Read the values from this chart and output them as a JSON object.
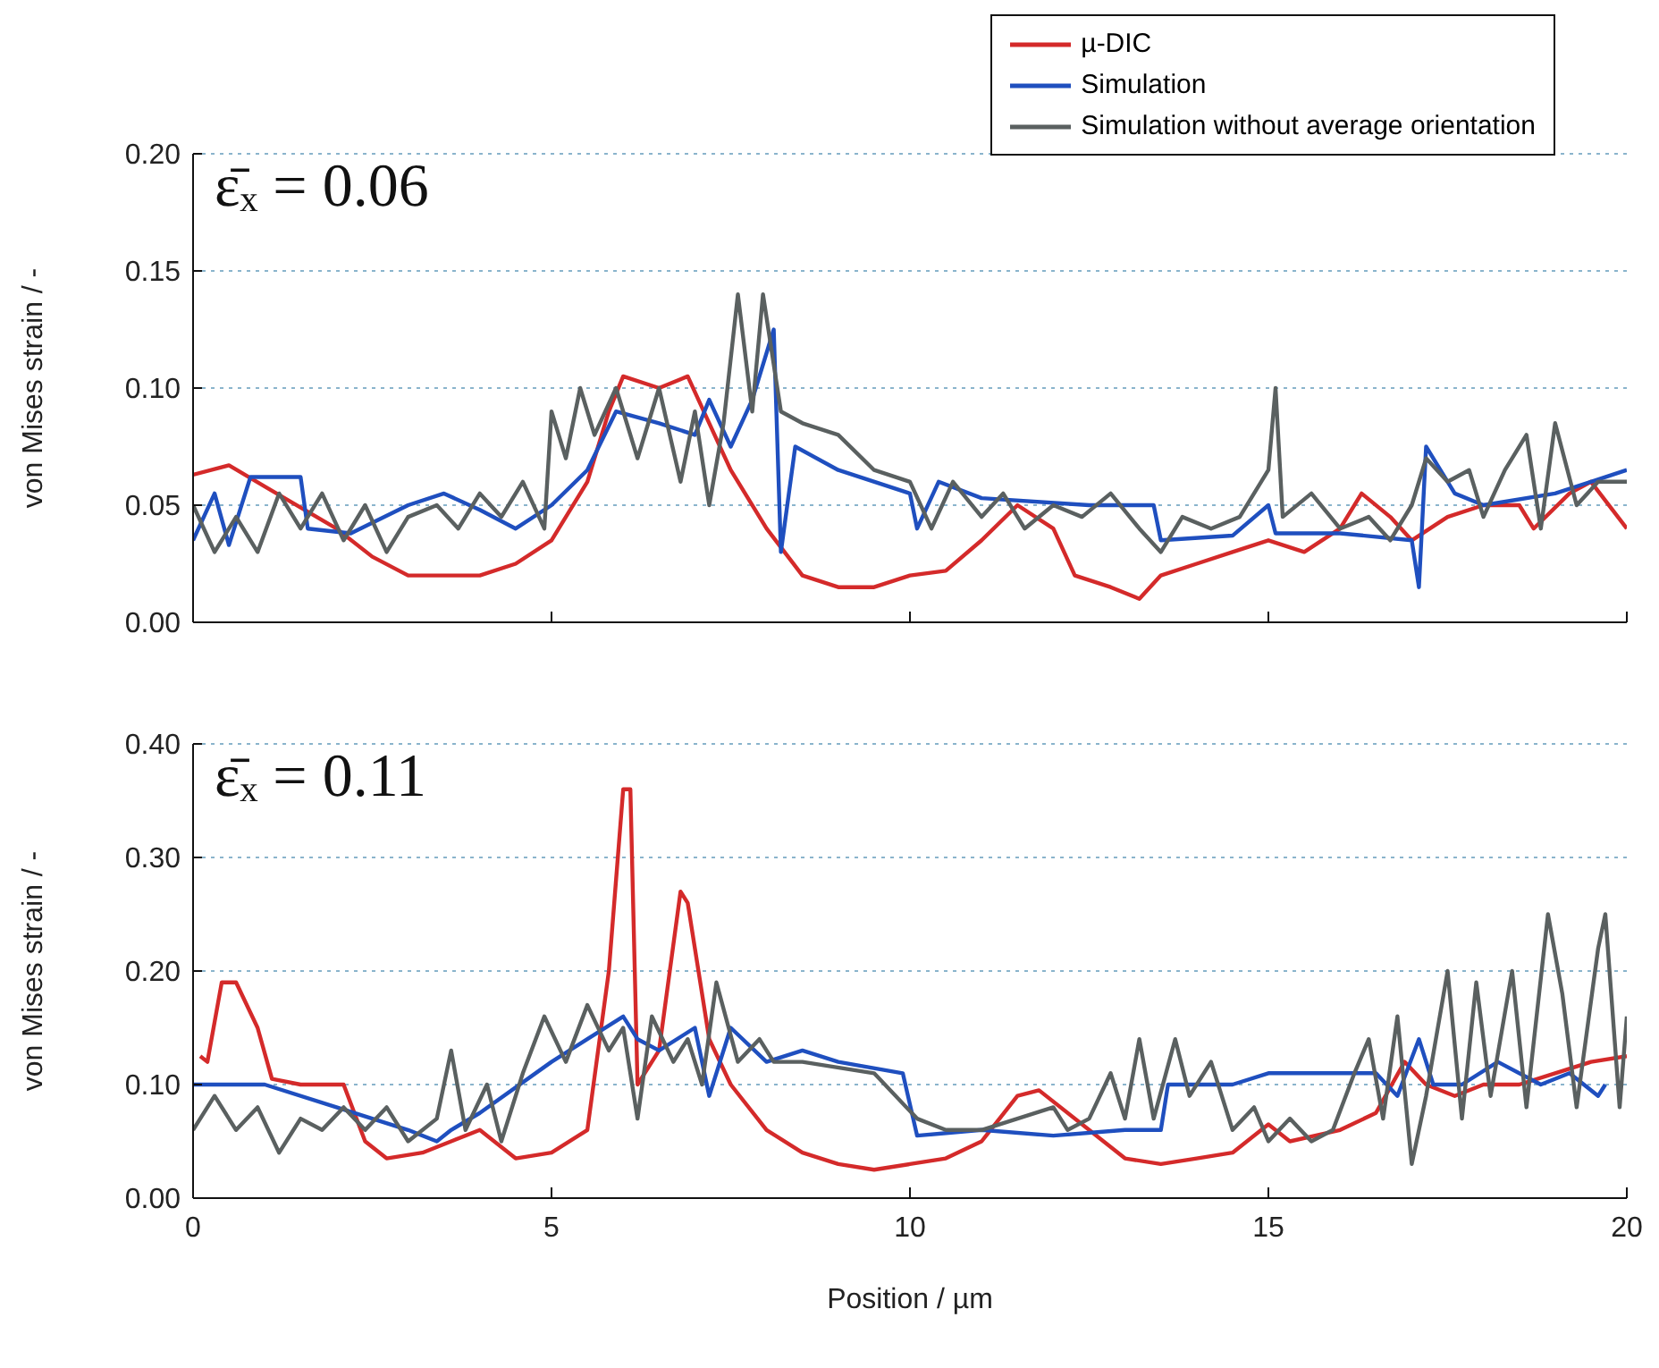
{
  "chart_data": [
    {
      "type": "line",
      "ylabel": "von Mises strain / -",
      "annotations": [
        "ε̄ₓ = 0.06"
      ],
      "legend": "top right",
      "grid": "y",
      "tick_labels": "y",
      "line_style": "solid",
      "marker": "none",
      "xlim": [
        0,
        20
      ],
      "xticks": [
        0,
        5,
        10,
        15,
        20
      ],
      "ylim": [
        0,
        0.2
      ],
      "yticks": [
        {
          "value": 0,
          "label": "0.00"
        },
        {
          "value": 0.05,
          "label": "0.05"
        },
        {
          "value": 0.1,
          "label": "0.10"
        },
        {
          "value": 0.15,
          "label": "0.15"
        },
        {
          "value": 0.2,
          "label": "0.20"
        }
      ],
      "series": [
        {
          "name": "µ-DIC",
          "color": "#d42a2a",
          "x": [
            0,
            0.5,
            1,
            2,
            2.5,
            3,
            4,
            4.5,
            5,
            5.5,
            5.8,
            6,
            6.5,
            6.9,
            7.2,
            7.5,
            8,
            8.5,
            9,
            9.5,
            10,
            10.5,
            11,
            11.5,
            12,
            12.3,
            12.8,
            13.2,
            13.5,
            14,
            14.5,
            15,
            15.5,
            16,
            16.3,
            16.7,
            17,
            17.5,
            18,
            18.5,
            18.7,
            19.2,
            19.5,
            20
          ],
          "values": [
            0.063,
            0.067,
            0.058,
            0.04,
            0.028,
            0.02,
            0.02,
            0.025,
            0.035,
            0.06,
            0.09,
            0.105,
            0.1,
            0.105,
            0.085,
            0.065,
            0.04,
            0.02,
            0.015,
            0.015,
            0.02,
            0.022,
            0.035,
            0.05,
            0.04,
            0.02,
            0.015,
            0.01,
            0.02,
            0.025,
            0.03,
            0.035,
            0.03,
            0.04,
            0.055,
            0.045,
            0.035,
            0.045,
            0.05,
            0.05,
            0.04,
            0.055,
            0.06,
            0.04
          ]
        },
        {
          "name": "Simulation",
          "color": "#1f4fbf",
          "x": [
            0,
            0.3,
            0.5,
            0.8,
            1.5,
            1.6,
            2.2,
            3,
            3.5,
            4,
            4.5,
            5,
            5.5,
            5.9,
            6.5,
            7,
            7.2,
            7.5,
            7.8,
            8.1,
            8.2,
            8.4,
            9,
            10,
            10.1,
            10.4,
            11,
            12.5,
            13.4,
            13.5,
            14.5,
            15,
            15.1,
            16,
            17,
            17.1,
            17.2,
            17.6,
            18,
            19,
            19.5,
            20
          ],
          "values": [
            0.035,
            0.055,
            0.033,
            0.062,
            0.062,
            0.04,
            0.038,
            0.05,
            0.055,
            0.048,
            0.04,
            0.05,
            0.065,
            0.09,
            0.085,
            0.08,
            0.095,
            0.075,
            0.095,
            0.125,
            0.03,
            0.075,
            0.065,
            0.055,
            0.04,
            0.06,
            0.053,
            0.05,
            0.05,
            0.035,
            0.037,
            0.05,
            0.038,
            0.038,
            0.035,
            0.015,
            0.075,
            0.055,
            0.05,
            0.055,
            0.06,
            0.065
          ]
        },
        {
          "name": "Simulation without average orientation",
          "color": "#5a6060",
          "x": [
            0,
            0.3,
            0.6,
            0.9,
            1.2,
            1.5,
            1.8,
            2.1,
            2.4,
            2.7,
            3,
            3.4,
            3.7,
            4,
            4.3,
            4.6,
            4.9,
            5,
            5.2,
            5.4,
            5.6,
            5.9,
            6.2,
            6.5,
            6.8,
            7,
            7.2,
            7.4,
            7.6,
            7.8,
            7.95,
            8.2,
            8.5,
            9,
            9.5,
            10,
            10.3,
            10.6,
            11,
            11.3,
            11.6,
            12,
            12.4,
            12.8,
            13.2,
            13.5,
            13.8,
            14.2,
            14.6,
            15,
            15.1,
            15.2,
            15.6,
            16,
            16.4,
            16.7,
            17,
            17.2,
            17.5,
            17.8,
            18,
            18.3,
            18.6,
            18.8,
            19,
            19.3,
            19.6,
            20
          ],
          "values": [
            0.05,
            0.03,
            0.045,
            0.03,
            0.055,
            0.04,
            0.055,
            0.035,
            0.05,
            0.03,
            0.045,
            0.05,
            0.04,
            0.055,
            0.045,
            0.06,
            0.04,
            0.09,
            0.07,
            0.1,
            0.08,
            0.1,
            0.07,
            0.1,
            0.06,
            0.09,
            0.05,
            0.085,
            0.14,
            0.09,
            0.14,
            0.09,
            0.085,
            0.08,
            0.065,
            0.06,
            0.04,
            0.06,
            0.045,
            0.055,
            0.04,
            0.05,
            0.045,
            0.055,
            0.04,
            0.03,
            0.045,
            0.04,
            0.045,
            0.065,
            0.1,
            0.045,
            0.055,
            0.04,
            0.045,
            0.035,
            0.05,
            0.07,
            0.06,
            0.065,
            0.045,
            0.065,
            0.08,
            0.04,
            0.085,
            0.05,
            0.06,
            0.06
          ]
        }
      ]
    },
    {
      "type": "line",
      "ylabel": "von Mises strain / -",
      "xlabel": "Position / µm",
      "annotations": [
        "ε̄ₓ = 0.11"
      ],
      "grid": "y",
      "line_style": "solid",
      "marker": "none",
      "xlim": [
        0,
        20
      ],
      "xticks": [
        0,
        5,
        10,
        15,
        20
      ],
      "ylim": [
        0,
        0.4
      ],
      "yticks": [
        {
          "value": 0,
          "label": "0.00"
        },
        {
          "value": 0.1,
          "label": "0.10"
        },
        {
          "value": 0.2,
          "label": "0.20"
        },
        {
          "value": 0.3,
          "label": "0.30"
        },
        {
          "value": 0.4,
          "label": "0.40"
        }
      ],
      "series": [
        {
          "color": "#d42a2a",
          "x": [
            0.1,
            0.2,
            0.4,
            0.6,
            0.9,
            1.1,
            1.5,
            2.1,
            2.4,
            2.7,
            3.2,
            3.6,
            4,
            4.5,
            5,
            5.5,
            5.8,
            6,
            6.1,
            6.2,
            6.5,
            6.8,
            6.9,
            7.2,
            7.5,
            8,
            8.5,
            9,
            9.5,
            10,
            10.5,
            11,
            11.5,
            11.8,
            12.5,
            13,
            13.5,
            14,
            14.5,
            15,
            15.3,
            16,
            16.5,
            16.9,
            17.2,
            17.6,
            18,
            18.5,
            19,
            19.5,
            20
          ],
          "values": [
            0.125,
            0.12,
            0.19,
            0.19,
            0.15,
            0.105,
            0.1,
            0.1,
            0.05,
            0.035,
            0.04,
            0.05,
            0.06,
            0.035,
            0.04,
            0.06,
            0.2,
            0.36,
            0.36,
            0.1,
            0.13,
            0.27,
            0.26,
            0.14,
            0.1,
            0.06,
            0.04,
            0.03,
            0.025,
            0.03,
            0.035,
            0.05,
            0.09,
            0.095,
            0.06,
            0.035,
            0.03,
            0.035,
            0.04,
            0.065,
            0.05,
            0.06,
            0.075,
            0.12,
            0.1,
            0.09,
            0.1,
            0.1,
            0.11,
            0.12,
            0.125
          ]
        },
        {
          "color": "#1f4fbf",
          "x": [
            0,
            1,
            2,
            3,
            3.4,
            3.6,
            4,
            5,
            5.5,
            6,
            6.2,
            6.5,
            7,
            7.2,
            7.5,
            8,
            8.5,
            9,
            9.9,
            10.1,
            11,
            12,
            13,
            13.5,
            13.6,
            14.5,
            15,
            16,
            16.5,
            16.8,
            17.1,
            17.3,
            17.7,
            18.2,
            18.8,
            19.2,
            19.6,
            19.7
          ],
          "values": [
            0.1,
            0.1,
            0.08,
            0.06,
            0.05,
            0.06,
            0.075,
            0.12,
            0.14,
            0.16,
            0.14,
            0.13,
            0.15,
            0.09,
            0.15,
            0.12,
            0.13,
            0.12,
            0.11,
            0.055,
            0.06,
            0.055,
            0.06,
            0.06,
            0.1,
            0.1,
            0.11,
            0.11,
            0.11,
            0.09,
            0.14,
            0.1,
            0.1,
            0.12,
            0.1,
            0.11,
            0.09,
            0.1
          ]
        },
        {
          "color": "#5a6060",
          "x": [
            0,
            0.3,
            0.6,
            0.9,
            1.2,
            1.5,
            1.8,
            2.1,
            2.4,
            2.7,
            3,
            3.4,
            3.6,
            3.8,
            4.1,
            4.3,
            4.6,
            4.9,
            5.2,
            5.5,
            5.8,
            6,
            6.2,
            6.4,
            6.7,
            6.9,
            7.1,
            7.3,
            7.6,
            7.9,
            8.1,
            8.5,
            9.5,
            10.1,
            10.5,
            11,
            11.5,
            12,
            12.2,
            12.5,
            12.8,
            13,
            13.2,
            13.4,
            13.7,
            13.9,
            14.2,
            14.5,
            14.8,
            15,
            15.3,
            15.6,
            15.9,
            16.2,
            16.4,
            16.6,
            16.8,
            17,
            17.2,
            17.5,
            17.7,
            17.9,
            18.1,
            18.4,
            18.6,
            18.9,
            19.1,
            19.3,
            19.6,
            19.7,
            19.9,
            20
          ],
          "values": [
            0.06,
            0.09,
            0.06,
            0.08,
            0.04,
            0.07,
            0.06,
            0.08,
            0.06,
            0.08,
            0.05,
            0.07,
            0.13,
            0.06,
            0.1,
            0.05,
            0.11,
            0.16,
            0.12,
            0.17,
            0.13,
            0.15,
            0.07,
            0.16,
            0.12,
            0.14,
            0.1,
            0.19,
            0.12,
            0.14,
            0.12,
            0.12,
            0.11,
            0.07,
            0.06,
            0.06,
            0.07,
            0.08,
            0.06,
            0.07,
            0.11,
            0.07,
            0.14,
            0.07,
            0.14,
            0.09,
            0.12,
            0.06,
            0.08,
            0.05,
            0.07,
            0.05,
            0.06,
            0.11,
            0.14,
            0.07,
            0.16,
            0.03,
            0.09,
            0.2,
            0.07,
            0.19,
            0.09,
            0.2,
            0.08,
            0.25,
            0.18,
            0.08,
            0.22,
            0.25,
            0.08,
            0.16
          ]
        }
      ]
    }
  ]
}
